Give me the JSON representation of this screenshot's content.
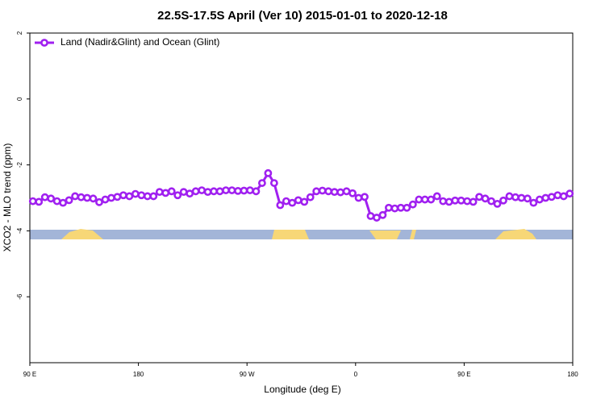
{
  "chart_data": {
    "type": "line",
    "title": "22.5S-17.5S April (Ver 10)   2015-01-01 to 2020-12-18",
    "xlabel": "Longitude (deg E)",
    "ylabel": "XCO2 - MLO trend (ppm)",
    "xlim": [
      90,
      540
    ],
    "ylim": [
      -8,
      2
    ],
    "xticks": [
      {
        "value": 90,
        "label": "90 E"
      },
      180,
      {
        "value": 270,
        "label": "90 W"
      },
      {
        "value": 360,
        "label": "0"
      },
      {
        "value": 450,
        "label": "90 E"
      },
      {
        "value": 540,
        "label": "180"
      }
    ],
    "yticks": [
      2,
      0,
      -2,
      -4,
      -6
    ],
    "legend": "top-left",
    "x": [
      92.5,
      97.5,
      102.5,
      107.5,
      112.5,
      117.5,
      122.5,
      127.5,
      132.5,
      137.5,
      142.5,
      147.5,
      152.5,
      157.5,
      162.5,
      167.5,
      172.5,
      177.5,
      182.5,
      187.5,
      192.5,
      197.5,
      202.5,
      207.5,
      212.5,
      217.5,
      222.5,
      227.5,
      232.5,
      237.5,
      242.5,
      247.5,
      252.5,
      257.5,
      262.5,
      267.5,
      272.5,
      277.5,
      282.5,
      287.5,
      292.5,
      297.5,
      302.5,
      307.5,
      312.5,
      317.5,
      322.5,
      327.5,
      332.5,
      337.5,
      342.5,
      347.5,
      352.5,
      357.5,
      362.5,
      367.5,
      372.5,
      377.5,
      382.5,
      387.5,
      392.5,
      397.5,
      402.5,
      407.5,
      412.5,
      417.5,
      422.5,
      427.5,
      432.5,
      437.5,
      442.5,
      447.5,
      452.5,
      457.5,
      462.5,
      467.5,
      472.5,
      477.5,
      482.5,
      487.5,
      492.5,
      497.5,
      502.5,
      507.5,
      512.5,
      517.5,
      522.5,
      527.5,
      532.5,
      537.5
    ],
    "series": [
      {
        "name": "Land (Nadir&Glint) and Ocean (Glint)",
        "color": "#a020f0",
        "values": [
          -3.1,
          -3.12,
          -2.98,
          -3.02,
          -3.1,
          -3.15,
          -3.07,
          -2.95,
          -2.98,
          -3.0,
          -3.02,
          -3.13,
          -3.05,
          -3.0,
          -2.97,
          -2.92,
          -2.95,
          -2.88,
          -2.92,
          -2.95,
          -2.95,
          -2.82,
          -2.85,
          -2.8,
          -2.92,
          -2.82,
          -2.87,
          -2.8,
          -2.77,
          -2.82,
          -2.8,
          -2.8,
          -2.77,
          -2.77,
          -2.79,
          -2.78,
          -2.77,
          -2.8,
          -2.55,
          -2.25,
          -2.55,
          -3.22,
          -3.1,
          -3.15,
          -3.07,
          -3.12,
          -2.98,
          -2.8,
          -2.78,
          -2.8,
          -2.82,
          -2.83,
          -2.8,
          -2.86,
          -3.0,
          -2.97,
          -3.55,
          -3.6,
          -3.52,
          -3.3,
          -3.32,
          -3.3,
          -3.3,
          -3.2,
          -3.05,
          -3.05,
          -3.05,
          -2.95,
          -3.1,
          -3.12,
          -3.08,
          -3.08,
          -3.1,
          -3.12,
          -2.97,
          -3.02,
          -3.1,
          -3.18,
          -3.08,
          -2.95,
          -2.98,
          -3.0,
          -3.02,
          -3.15,
          -3.05,
          -3.0,
          -2.97,
          -2.92,
          -2.95,
          -2.87
        ]
      }
    ]
  }
}
